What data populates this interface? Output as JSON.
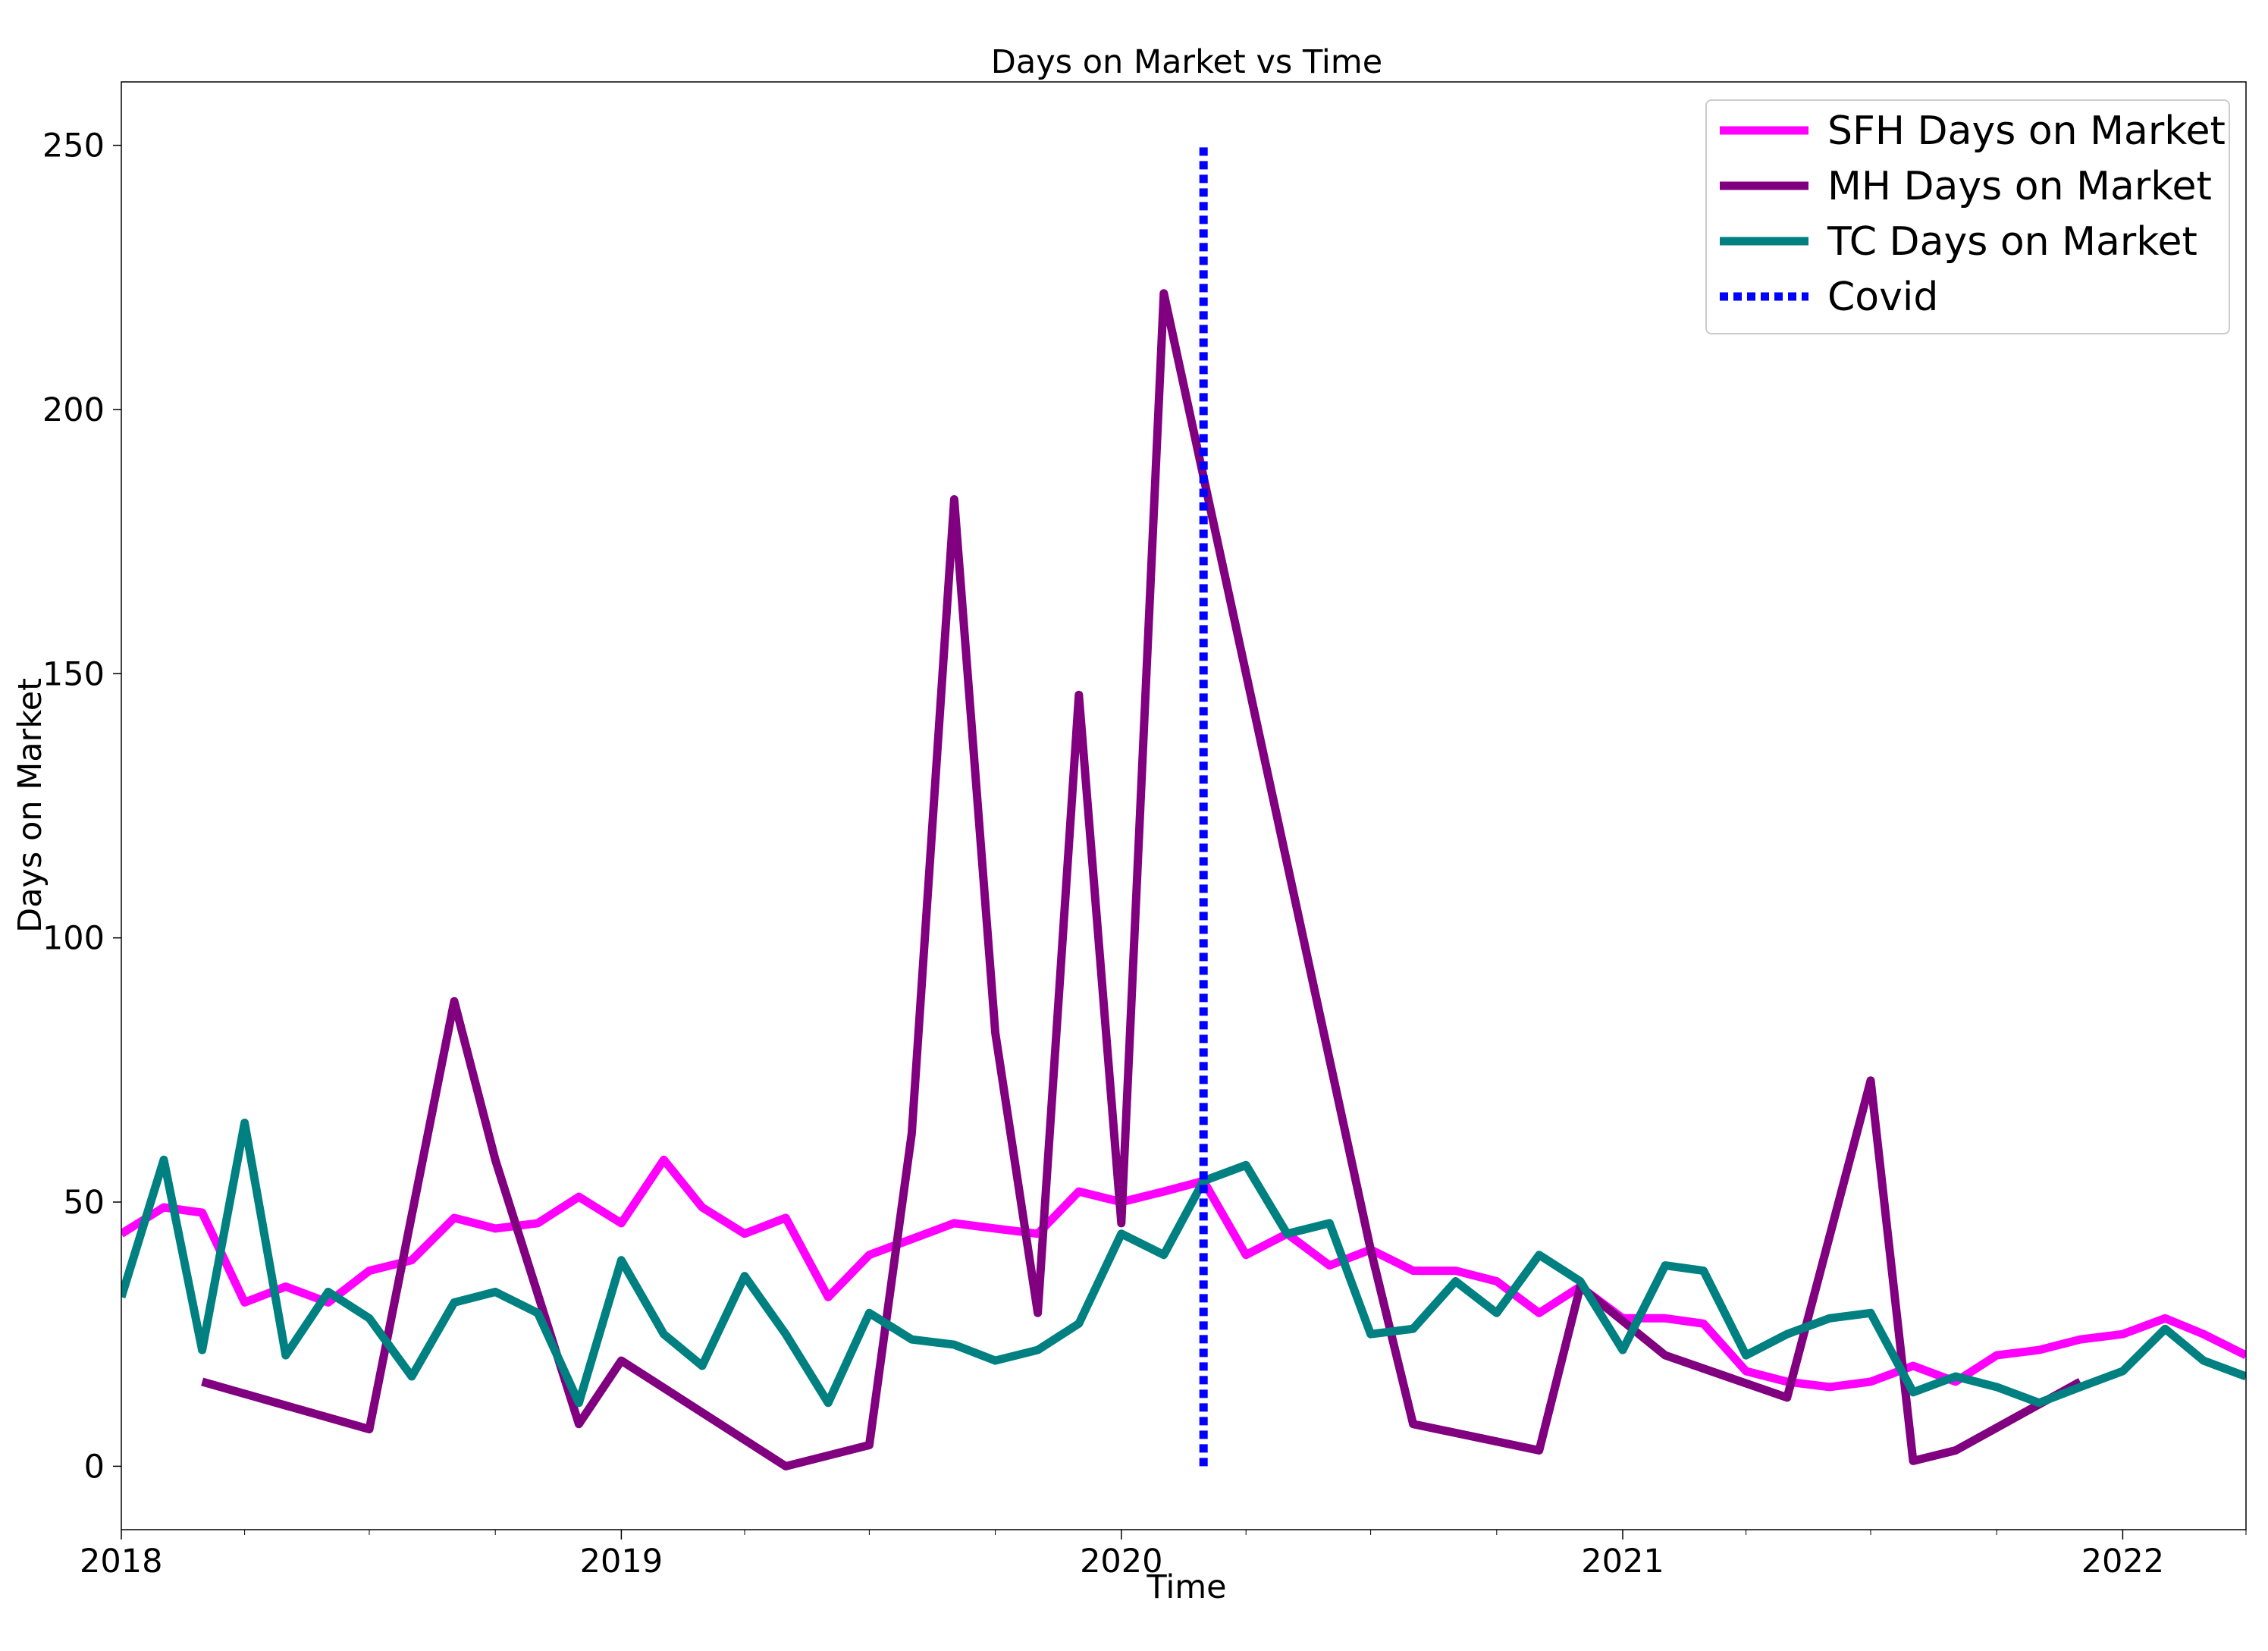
{
  "chart_data": {
    "type": "line",
    "title": "Days on Market vs Time",
    "xlabel": "Time",
    "ylabel": "Days on Market",
    "x_type": "date",
    "xlim": [
      "2018-01-01",
      "2022-04-01"
    ],
    "ylim": [
      -12,
      262
    ],
    "x_ticks": [
      {
        "date": "2018-01-01",
        "label": "2018"
      },
      {
        "date": "2019-01-01",
        "label": "2019"
      },
      {
        "date": "2020-01-01",
        "label": "2020"
      },
      {
        "date": "2021-01-01",
        "label": "2021"
      },
      {
        "date": "2022-01-01",
        "label": "2022"
      }
    ],
    "y_ticks": [
      0,
      50,
      100,
      150,
      200,
      250
    ],
    "grid": false,
    "legend_position": "top-right",
    "series": [
      {
        "name": "SFH Days on Market",
        "color": "#ff00ff",
        "style": "solid",
        "x": [
          "2018-01-01",
          "2018-02-01",
          "2018-03-01",
          "2018-04-01",
          "2018-05-01",
          "2018-06-01",
          "2018-07-01",
          "2018-08-01",
          "2018-09-01",
          "2018-10-01",
          "2018-11-01",
          "2018-12-01",
          "2019-01-01",
          "2019-02-01",
          "2019-03-01",
          "2019-04-01",
          "2019-05-01",
          "2019-06-01",
          "2019-07-01",
          "2019-08-01",
          "2019-09-01",
          "2019-10-01",
          "2019-11-01",
          "2019-12-01",
          "2020-01-01",
          "2020-02-01",
          "2020-03-01",
          "2020-04-01",
          "2020-05-01",
          "2020-06-01",
          "2020-07-01",
          "2020-08-01",
          "2020-09-01",
          "2020-10-01",
          "2020-11-01",
          "2020-12-01",
          "2021-01-01",
          "2021-02-01",
          "2021-03-01",
          "2021-04-01",
          "2021-05-01",
          "2021-06-01",
          "2021-07-01",
          "2021-08-01",
          "2021-09-01",
          "2021-10-01",
          "2021-11-01",
          "2021-12-01",
          "2022-01-01",
          "2022-02-01",
          "2022-03-01",
          "2022-04-01"
        ],
        "y": [
          44,
          49,
          48,
          31,
          34,
          31,
          37,
          39,
          47,
          45,
          46,
          51,
          46,
          58,
          49,
          44,
          47,
          32,
          40,
          43,
          46,
          45,
          44,
          52,
          50,
          52,
          54,
          40,
          44,
          38,
          41,
          37,
          37,
          35,
          29,
          34,
          28,
          28,
          27,
          18,
          16,
          15,
          16,
          19,
          16,
          21,
          22,
          24,
          25,
          28,
          25,
          21
        ]
      },
      {
        "name": "MH Days on Market",
        "color": "#800080",
        "style": "solid",
        "x": [
          "2018-03-01",
          "2018-07-01",
          "2018-09-01",
          "2018-10-01",
          "2018-12-01",
          "2019-01-01",
          "2019-05-01",
          "2019-07-01",
          "2019-08-01",
          "2019-09-01",
          "2019-10-01",
          "2019-11-01",
          "2019-12-01",
          "2020-01-01",
          "2020-02-01",
          "2020-07-01",
          "2020-08-01",
          "2020-11-01",
          "2020-12-01",
          "2021-02-01",
          "2021-05-01",
          "2021-07-01",
          "2021-08-01",
          "2021-09-01",
          "2021-12-01"
        ],
        "y": [
          16,
          7,
          88,
          58,
          8,
          20,
          0,
          4,
          63,
          183,
          82,
          29,
          146,
          46,
          222,
          41,
          8,
          3,
          34,
          21,
          13,
          73,
          1,
          3,
          16
        ]
      },
      {
        "name": "TC Days on Market",
        "color": "#008080",
        "style": "solid",
        "x": [
          "2018-01-01",
          "2018-02-01",
          "2018-03-01",
          "2018-04-01",
          "2018-05-01",
          "2018-06-01",
          "2018-07-01",
          "2018-08-01",
          "2018-09-01",
          "2018-10-01",
          "2018-11-01",
          "2018-12-01",
          "2019-01-01",
          "2019-02-01",
          "2019-03-01",
          "2019-04-01",
          "2019-05-01",
          "2019-06-01",
          "2019-07-01",
          "2019-08-01",
          "2019-09-01",
          "2019-10-01",
          "2019-11-01",
          "2019-12-01",
          "2020-01-01",
          "2020-02-01",
          "2020-03-01",
          "2020-04-01",
          "2020-05-01",
          "2020-06-01",
          "2020-07-01",
          "2020-08-01",
          "2020-09-01",
          "2020-10-01",
          "2020-11-01",
          "2020-12-01",
          "2021-01-01",
          "2021-02-01",
          "2021-03-01",
          "2021-04-01",
          "2021-05-01",
          "2021-06-01",
          "2021-07-01",
          "2021-08-01",
          "2021-09-01",
          "2021-10-01",
          "2021-11-01",
          "2021-12-01",
          "2022-01-01",
          "2022-02-01",
          "2022-03-01",
          "2022-04-01"
        ],
        "y": [
          32,
          58,
          22,
          65,
          21,
          33,
          28,
          17,
          31,
          33,
          29,
          12,
          39,
          25,
          19,
          36,
          25,
          12,
          29,
          24,
          23,
          20,
          22,
          27,
          44,
          40,
          54,
          57,
          44,
          46,
          25,
          26,
          35,
          29,
          40,
          35,
          22,
          38,
          37,
          21,
          25,
          28,
          29,
          14,
          17,
          15,
          12,
          15,
          18,
          26,
          20,
          17
        ]
      },
      {
        "name": "Covid",
        "color": "#0000ff",
        "style": "dotted",
        "x": [
          "2020-03-01",
          "2020-03-01"
        ],
        "y": [
          0,
          250
        ]
      }
    ]
  }
}
